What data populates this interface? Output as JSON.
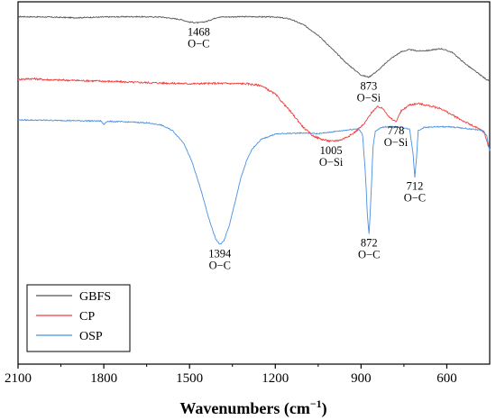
{
  "chart_data": {
    "type": "line",
    "title": "",
    "xlabel": "Wavenumbers (cm",
    "xlabel_sup": "−1",
    "xlabel_close": ")",
    "ylabel": "",
    "xlim": [
      2100,
      450
    ],
    "x_reversed": true,
    "y_axis_shown": false,
    "y_units": "arbitrary (stacked spectra)",
    "ylim": [
      0,
      100
    ],
    "x_ticks": [
      2100,
      1800,
      1500,
      1200,
      900,
      600
    ],
    "x_tick_labels": [
      "2100",
      "1800",
      "1500",
      "1200",
      "900",
      "600"
    ],
    "grid": false,
    "legend_position": "bottom-left",
    "series": [
      {
        "name": "GBFS",
        "color": "#555555",
        "noise": 0.15,
        "points": [
          [
            2100,
            95.9
          ],
          [
            2000,
            95.8
          ],
          [
            1900,
            95.6
          ],
          [
            1800,
            95.8
          ],
          [
            1700,
            95.9
          ],
          [
            1600,
            95.8
          ],
          [
            1530,
            95.1
          ],
          [
            1500,
            94.4
          ],
          [
            1468,
            94.2
          ],
          [
            1440,
            94.6
          ],
          [
            1400,
            95.8
          ],
          [
            1300,
            95.9
          ],
          [
            1200,
            95.8
          ],
          [
            1150,
            95.3
          ],
          [
            1100,
            93.6
          ],
          [
            1050,
            90.8
          ],
          [
            1000,
            86.9
          ],
          [
            950,
            83.0
          ],
          [
            900,
            79.8
          ],
          [
            873,
            79.2
          ],
          [
            840,
            81.1
          ],
          [
            800,
            84.1
          ],
          [
            760,
            86.2
          ],
          [
            730,
            86.8
          ],
          [
            700,
            86.4
          ],
          [
            660,
            86.6
          ],
          [
            620,
            87.1
          ],
          [
            580,
            86.0
          ],
          [
            540,
            83.2
          ],
          [
            500,
            80.8
          ],
          [
            460,
            78.5
          ],
          [
            450,
            78.2
          ]
        ]
      },
      {
        "name": "CP",
        "color": "#f03c3c",
        "noise": 0.25,
        "points": [
          [
            2100,
            78.6
          ],
          [
            2050,
            78.8
          ],
          [
            2000,
            78.5
          ],
          [
            1900,
            78.3
          ],
          [
            1800,
            78.1
          ],
          [
            1700,
            77.8
          ],
          [
            1600,
            77.6
          ],
          [
            1500,
            77.4
          ],
          [
            1400,
            77.5
          ],
          [
            1300,
            77.4
          ],
          [
            1250,
            76.9
          ],
          [
            1200,
            74.5
          ],
          [
            1150,
            70.0
          ],
          [
            1100,
            65.2
          ],
          [
            1070,
            63.1
          ],
          [
            1040,
            62.1
          ],
          [
            1005,
            61.5
          ],
          [
            970,
            61.9
          ],
          [
            930,
            63.5
          ],
          [
            890,
            66.2
          ],
          [
            860,
            69.8
          ],
          [
            840,
            71.1
          ],
          [
            820,
            70.3
          ],
          [
            800,
            68.0
          ],
          [
            778,
            66.9
          ],
          [
            760,
            69.8
          ],
          [
            730,
            71.6
          ],
          [
            700,
            71.9
          ],
          [
            660,
            71.3
          ],
          [
            620,
            70.5
          ],
          [
            580,
            68.7
          ],
          [
            540,
            67.0
          ],
          [
            500,
            65.4
          ],
          [
            470,
            64.2
          ],
          [
            450,
            59.0
          ]
        ]
      },
      {
        "name": "OSP",
        "color": "#4a90e0",
        "noise": 0.15,
        "points": [
          [
            2100,
            67.4
          ],
          [
            2000,
            67.3
          ],
          [
            1900,
            67.2
          ],
          [
            1810,
            67.1
          ],
          [
            1800,
            66.1
          ],
          [
            1790,
            67.0
          ],
          [
            1700,
            66.8
          ],
          [
            1650,
            66.6
          ],
          [
            1600,
            66.0
          ],
          [
            1560,
            64.5
          ],
          [
            1520,
            61.0
          ],
          [
            1490,
            55.5
          ],
          [
            1460,
            48.0
          ],
          [
            1430,
            39.5
          ],
          [
            1410,
            34.8
          ],
          [
            1394,
            33.0
          ],
          [
            1380,
            34.0
          ],
          [
            1360,
            38.5
          ],
          [
            1340,
            45.0
          ],
          [
            1320,
            51.5
          ],
          [
            1300,
            56.2
          ],
          [
            1280,
            59.5
          ],
          [
            1250,
            62.0
          ],
          [
            1200,
            63.5
          ],
          [
            1150,
            63.7
          ],
          [
            1100,
            63.8
          ],
          [
            1050,
            63.6
          ],
          [
            1000,
            64.1
          ],
          [
            950,
            64.6
          ],
          [
            910,
            65.0
          ],
          [
            895,
            63.5
          ],
          [
            885,
            53.0
          ],
          [
            877,
            40.0
          ],
          [
            872,
            36.0
          ],
          [
            866,
            45.0
          ],
          [
            858,
            60.0
          ],
          [
            850,
            64.2
          ],
          [
            830,
            65.3
          ],
          [
            800,
            65.6
          ],
          [
            760,
            65.4
          ],
          [
            730,
            64.8
          ],
          [
            718,
            58.0
          ],
          [
            712,
            51.6
          ],
          [
            706,
            57.0
          ],
          [
            700,
            64.5
          ],
          [
            680,
            65.3
          ],
          [
            640,
            65.5
          ],
          [
            600,
            65.5
          ],
          [
            560,
            65.3
          ],
          [
            520,
            64.9
          ],
          [
            480,
            64.6
          ],
          [
            460,
            63.0
          ],
          [
            450,
            59.0
          ]
        ]
      }
    ],
    "annotations": [
      {
        "x": 1468,
        "y": 94.2,
        "lines": [
          "1468",
          "O−C"
        ]
      },
      {
        "x": 873,
        "y": 79.2,
        "lines": [
          "873",
          "O−Si"
        ]
      },
      {
        "x": 1005,
        "y": 61.5,
        "lines": [
          "1005",
          "O−Si"
        ]
      },
      {
        "x": 778,
        "y": 66.9,
        "lines": [
          "778",
          "O−Si"
        ]
      },
      {
        "x": 712,
        "y": 51.6,
        "lines": [
          "712",
          "O−C"
        ]
      },
      {
        "x": 872,
        "y": 36.0,
        "lines": [
          "872",
          "O−C"
        ]
      },
      {
        "x": 1394,
        "y": 33.0,
        "lines": [
          "1394",
          "O−C"
        ]
      }
    ]
  }
}
